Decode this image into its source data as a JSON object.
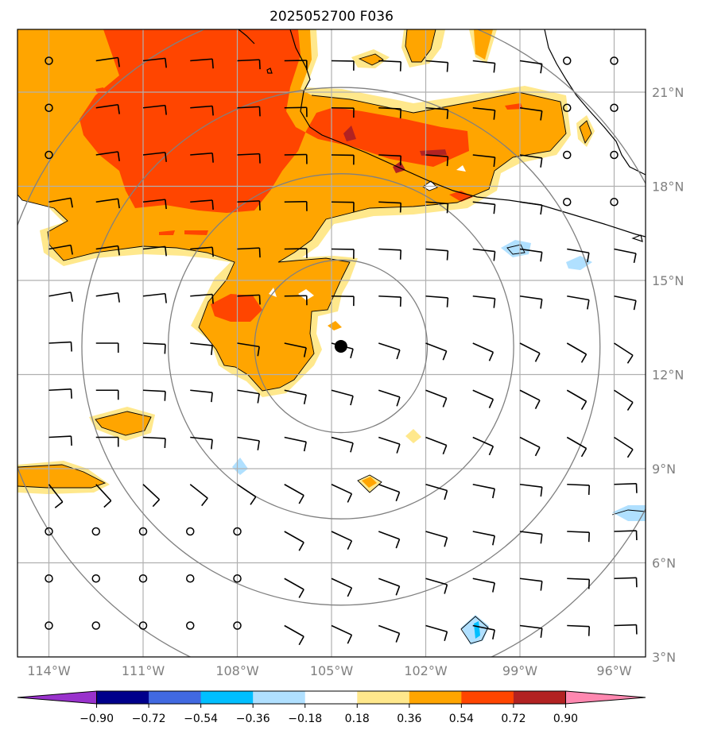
{
  "title": "2025052700 F036",
  "colors": {
    "neg_090_plus": "#9932cc",
    "neg_072": "#00008b",
    "neg_054": "#4169e1",
    "neg_036": "#00bfff",
    "neg_018": "#b0e0ff",
    "zero": "#ffffff",
    "pos_018": "#ffe88c",
    "pos_036": "#ffa500",
    "pos_054": "#ff4500",
    "pos_072": "#b22222",
    "pos_090_plus": "#ff88b0",
    "grid": "#b0b0b0",
    "range_rings": "#808080",
    "coastline": "#000000",
    "center_marker": "#000000"
  },
  "map": {
    "lon_range": [
      -115.0,
      -95.0
    ],
    "lat_range": [
      3.0,
      23.0
    ],
    "center": {
      "lon": -104.7,
      "lat": 12.9
    },
    "ring_radii_deg": [
      2.75,
      5.5,
      8.25,
      11.0
    ],
    "lat_ticks": [
      {
        "value": 3,
        "label": "3°N"
      },
      {
        "value": 6,
        "label": "6°N"
      },
      {
        "value": 9,
        "label": "9°N"
      },
      {
        "value": 12,
        "label": "12°N"
      },
      {
        "value": 15,
        "label": "15°N"
      },
      {
        "value": 18,
        "label": "18°N"
      },
      {
        "value": 21,
        "label": "21°N"
      }
    ],
    "lon_ticks": [
      {
        "value": -114,
        "label": "114°W"
      },
      {
        "value": -111,
        "label": "111°W"
      },
      {
        "value": -108,
        "label": "108°W"
      },
      {
        "value": -105,
        "label": "105°W"
      },
      {
        "value": -102,
        "label": "102°W"
      },
      {
        "value": -99,
        "label": "99°W"
      },
      {
        "value": -96,
        "label": "96°W"
      }
    ]
  },
  "colorbar": {
    "ticks": [
      "−0.90",
      "−0.72",
      "−0.54",
      "−0.36",
      "−0.18",
      "0.18",
      "0.36",
      "0.54",
      "0.72",
      "0.90"
    ],
    "bins": [
      "#00008b",
      "#4169e1",
      "#00bfff",
      "#b0e0ff",
      "#ffffff",
      "#ffe88c",
      "#ffa500",
      "#ff4500",
      "#b22222"
    ],
    "extend_low": "#9932cc",
    "extend_high": "#ff88b0"
  }
}
